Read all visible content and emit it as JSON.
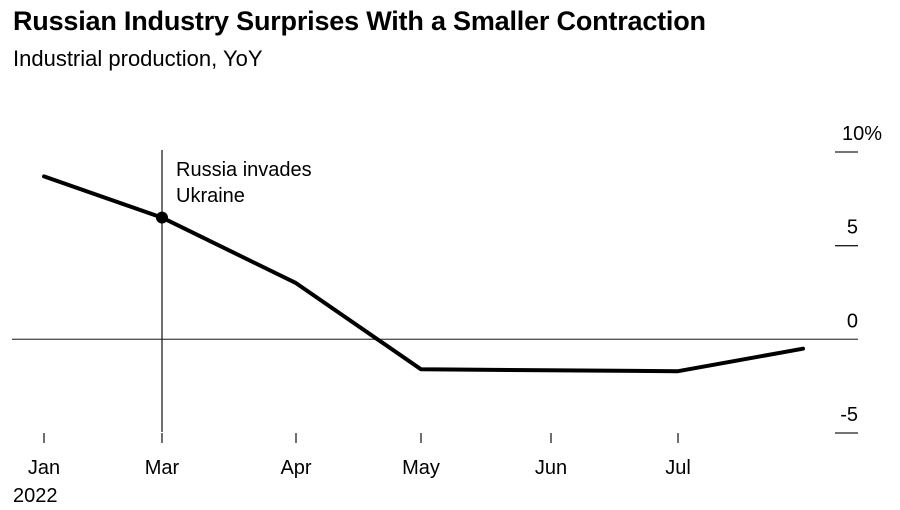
{
  "chart_data": {
    "type": "line",
    "title": "Russian Industry Surprises With a Smaller Contraction",
    "subtitle": "Industrial production, YoY",
    "xlabel": "",
    "ylabel": "",
    "x_tick_labels": [
      "Jan",
      "Mar",
      "Apr",
      "May",
      "Jun",
      "Jul"
    ],
    "x_tick_sublabel": "2022",
    "y_ticks": [
      10,
      5,
      0,
      -5
    ],
    "y_tick_labels": [
      "10%",
      "5",
      "0",
      "-5"
    ],
    "ylim": [
      -5,
      10
    ],
    "y_axis_position": "right",
    "grid": false,
    "series": [
      {
        "name": "Industrial production, YoY",
        "color": "#000000",
        "x": [
          "2022-01",
          "2022-03",
          "2022-04",
          "2022-05",
          "2022-07",
          "2022-08"
        ],
        "values": [
          8.7,
          6.5,
          3.0,
          -1.6,
          -1.7,
          -0.5
        ]
      }
    ],
    "annotations": [
      {
        "x": "2022-03",
        "text_lines": [
          "Russia invades",
          "Ukraine"
        ],
        "type": "vertical-line-with-marker"
      }
    ]
  }
}
